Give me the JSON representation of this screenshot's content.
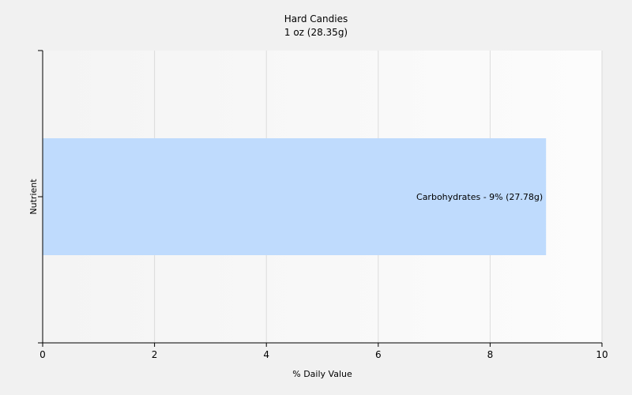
{
  "chart_data": {
    "type": "bar",
    "orientation": "horizontal",
    "title": "Hard Candies",
    "subtitle": "1 oz (28.35g)",
    "xlabel": "% Daily Value",
    "ylabel": "Nutrient",
    "xlim": [
      0,
      10
    ],
    "xticks": [
      0,
      2,
      4,
      6,
      8,
      10
    ],
    "grid": true,
    "categories": [
      "Carbohydrates"
    ],
    "values": [
      9
    ],
    "data_labels": [
      "Carbohydrates - 9% (27.78g)"
    ],
    "colors": {
      "bar": "#bfdbfd",
      "plot_bg_left": "#f4f4f4",
      "plot_bg_right": "#fcfcfc",
      "grid": "#dcdcdc",
      "axis": "#000000"
    }
  }
}
